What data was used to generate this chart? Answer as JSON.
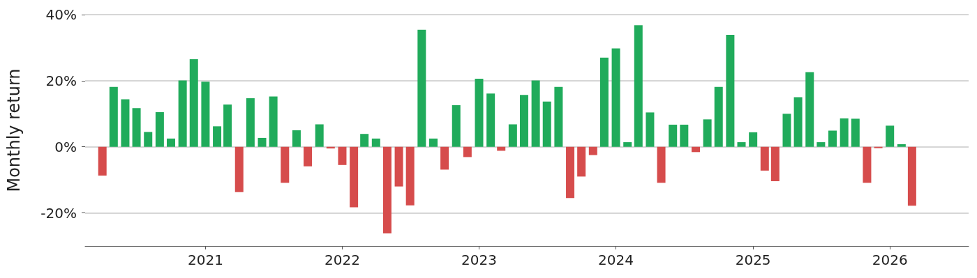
{
  "chart_data": {
    "type": "bar",
    "ylabel": "Monthly return",
    "x": [
      "2020-04",
      "2020-05",
      "2020-06",
      "2020-07",
      "2020-08",
      "2020-09",
      "2020-10",
      "2020-11",
      "2020-12",
      "2021-01",
      "2021-02",
      "2021-03",
      "2021-04",
      "2021-05",
      "2021-06",
      "2021-07",
      "2021-08",
      "2021-09",
      "2021-10",
      "2021-11",
      "2021-12",
      "2022-01",
      "2022-02",
      "2022-03",
      "2022-04",
      "2022-05",
      "2022-06",
      "2022-07",
      "2022-08",
      "2022-09",
      "2022-10",
      "2022-11",
      "2022-12",
      "2023-01",
      "2023-02",
      "2023-03",
      "2023-04",
      "2023-05",
      "2023-06",
      "2023-07",
      "2023-08",
      "2023-09",
      "2023-10",
      "2023-11",
      "2023-12",
      "2024-01",
      "2024-02",
      "2024-03",
      "2024-04",
      "2024-05",
      "2024-06",
      "2024-07",
      "2024-08",
      "2024-09",
      "2024-10",
      "2024-11",
      "2024-12",
      "2025-01",
      "2025-02",
      "2025-03",
      "2025-04",
      "2025-05",
      "2025-06",
      "2025-07",
      "2025-08",
      "2025-09",
      "2025-10",
      "2025-11",
      "2025-12",
      "2026-01",
      "2026-02",
      "2026-03"
    ],
    "values": [
      -8.7,
      18.1,
      14.4,
      11.7,
      4.5,
      10.5,
      2.5,
      20.1,
      26.5,
      19.7,
      6.2,
      12.8,
      -13.7,
      14.7,
      2.7,
      15.2,
      -10.9,
      5.0,
      -5.9,
      6.8,
      -0.5,
      -5.5,
      -18.3,
      3.9,
      2.5,
      -26.2,
      -12.0,
      -17.7,
      35.4,
      2.5,
      -6.9,
      12.6,
      -3.1,
      20.6,
      16.1,
      -1.2,
      6.8,
      15.7,
      20.1,
      13.7,
      18.1,
      -15.5,
      -9.0,
      -2.5,
      27.0,
      29.8,
      1.4,
      36.8,
      10.4,
      -10.9,
      6.7,
      6.7,
      -1.6,
      8.3,
      18.1,
      33.9,
      1.4,
      4.4,
      -7.2,
      -10.4,
      10.0,
      15.0,
      22.6,
      1.4,
      4.9,
      8.6,
      8.5,
      -10.9,
      -0.4,
      6.4,
      0.8,
      -17.8
    ],
    "colors": [
      "#d64c4c",
      "#20ab5b",
      "#20ab5b",
      "#20ab5b",
      "#20ab5b",
      "#20ab5b",
      "#20ab5b",
      "#20ab5b",
      "#20ab5b",
      "#20ab5b",
      "#20ab5b",
      "#20ab5b",
      "#d64c4c",
      "#20ab5b",
      "#20ab5b",
      "#20ab5b",
      "#d64c4c",
      "#20ab5b",
      "#d64c4c",
      "#20ab5b",
      "#d64c4c",
      "#d64c4c",
      "#d64c4c",
      "#20ab5b",
      "#20ab5b",
      "#d64c4c",
      "#d64c4c",
      "#d64c4c",
      "#20ab5b",
      "#20ab5b",
      "#d64c4c",
      "#20ab5b",
      "#d64c4c",
      "#20ab5b",
      "#20ab5b",
      "#d64c4c",
      "#20ab5b",
      "#20ab5b",
      "#20ab5b",
      "#20ab5b",
      "#20ab5b",
      "#d64c4c",
      "#d64c4c",
      "#d64c4c",
      "#20ab5b",
      "#20ab5b",
      "#20ab5b",
      "#20ab5b",
      "#20ab5b",
      "#d64c4c",
      "#20ab5b",
      "#20ab5b",
      "#d64c4c",
      "#20ab5b",
      "#20ab5b",
      "#20ab5b",
      "#20ab5b",
      "#20ab5b",
      "#d64c4c",
      "#d64c4c",
      "#20ab5b",
      "#20ab5b",
      "#20ab5b",
      "#20ab5b",
      "#20ab5b",
      "#20ab5b",
      "#20ab5b",
      "#d64c4c",
      "#d64c4c",
      "#20ab5b",
      "#20ab5b",
      "#d64c4c"
    ],
    "xlim": [
      "2020-02-15",
      "2026-07-30"
    ],
    "xticks": [
      "2021",
      "2022",
      "2023",
      "2024",
      "2025",
      "2026"
    ],
    "ylim": [
      -30,
      40
    ],
    "yticks": [
      {
        "value": -20,
        "label": "-20%"
      },
      {
        "value": 0,
        "label": "0%"
      },
      {
        "value": 20,
        "label": "20%"
      },
      {
        "value": 40,
        "label": "40%"
      }
    ],
    "grid": "y"
  }
}
